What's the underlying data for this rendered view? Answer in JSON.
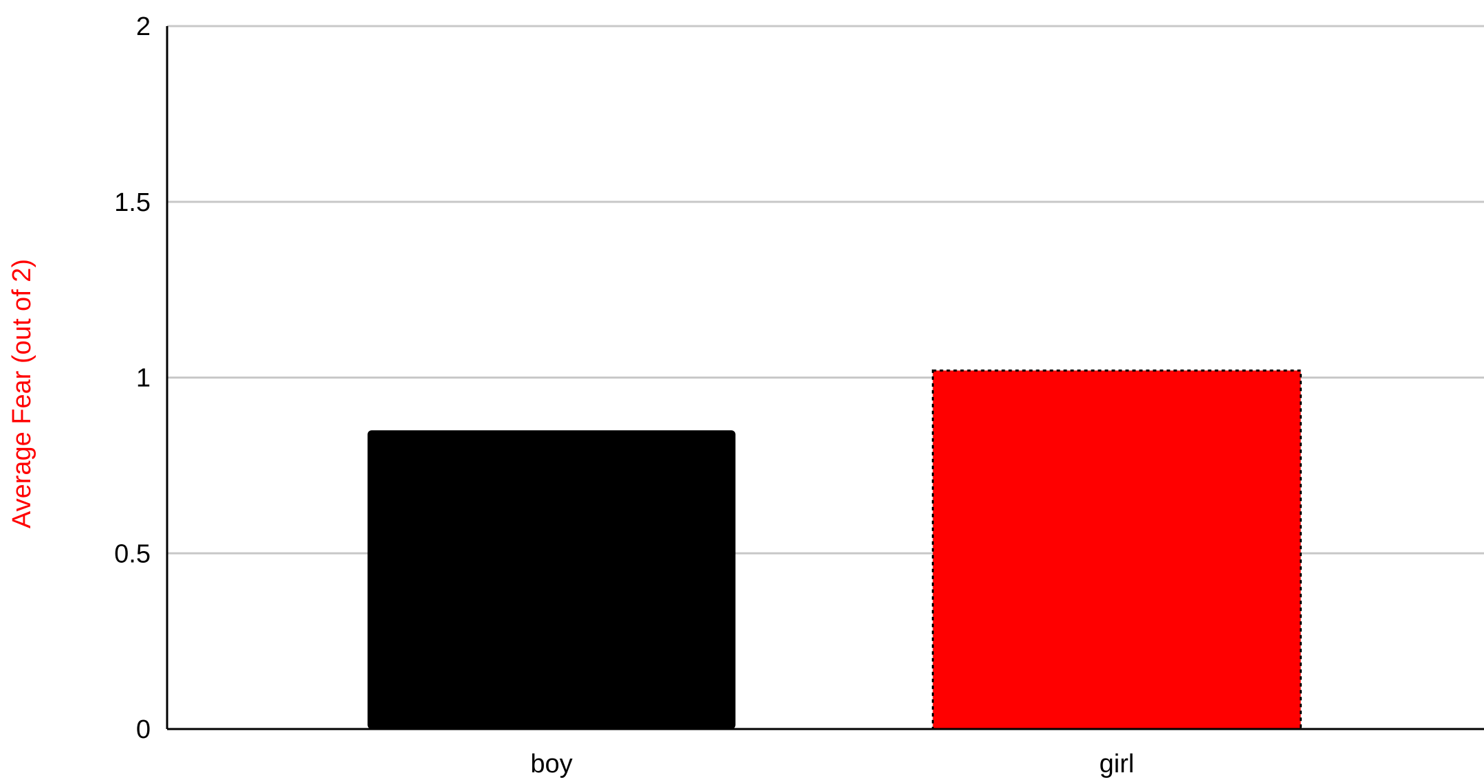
{
  "chart_data": {
    "type": "bar",
    "title": "",
    "xlabel": "",
    "ylabel": "Average Fear (out of 2)",
    "ylabel_color": "#ff0000",
    "categories": [
      "boy",
      "girl"
    ],
    "values": [
      0.85,
      1.02
    ],
    "bar_colors": [
      "#000000",
      "#ff0000"
    ],
    "ylim": [
      0,
      2
    ],
    "yticks": [
      0,
      0.5,
      1,
      1.5,
      2
    ],
    "ytick_labels": [
      "0",
      "0.5",
      "1",
      "1.5",
      "2"
    ],
    "grid": true,
    "legend": "none"
  }
}
